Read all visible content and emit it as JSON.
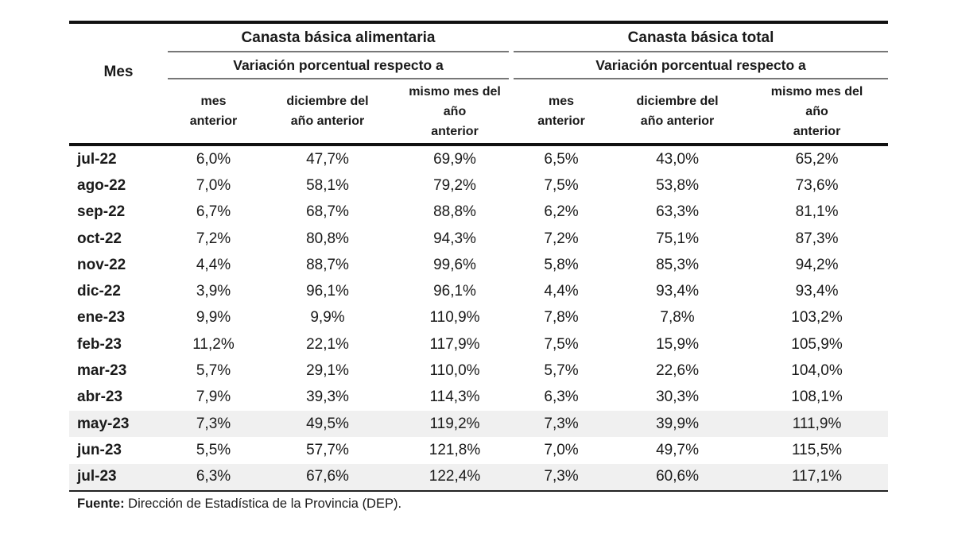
{
  "table": {
    "mes_header": "Mes",
    "groups": [
      {
        "title": "Canasta básica alimentaria",
        "subtitle": "Variación porcentual respecto a",
        "columns": [
          "mes anterior",
          "diciembre del año anterior",
          "mismo mes del año anterior"
        ]
      },
      {
        "title": "Canasta básica total",
        "subtitle": "Variación porcentual respecto a",
        "columns": [
          "mes anterior",
          "diciembre del año anterior",
          "mismo mes del año anterior"
        ]
      }
    ],
    "column_labels": {
      "mes_anterior": [
        "mes",
        "anterior"
      ],
      "diciembre": [
        "diciembre del",
        "año anterior"
      ],
      "mismo_mes": [
        "mismo mes del",
        "año",
        "anterior"
      ]
    },
    "rows": [
      {
        "mes": "jul-22",
        "cba": [
          "6,0%",
          "47,7%",
          "69,9%"
        ],
        "cbt": [
          "6,5%",
          "43,0%",
          "65,2%"
        ],
        "shaded": false
      },
      {
        "mes": "ago-22",
        "cba": [
          "7,0%",
          "58,1%",
          "79,2%"
        ],
        "cbt": [
          "7,5%",
          "53,8%",
          "73,6%"
        ],
        "shaded": false
      },
      {
        "mes": "sep-22",
        "cba": [
          "6,7%",
          "68,7%",
          "88,8%"
        ],
        "cbt": [
          "6,2%",
          "63,3%",
          "81,1%"
        ],
        "shaded": false
      },
      {
        "mes": "oct-22",
        "cba": [
          "7,2%",
          "80,8%",
          "94,3%"
        ],
        "cbt": [
          "7,2%",
          "75,1%",
          "87,3%"
        ],
        "shaded": false
      },
      {
        "mes": "nov-22",
        "cba": [
          "4,4%",
          "88,7%",
          "99,6%"
        ],
        "cbt": [
          "5,8%",
          "85,3%",
          "94,2%"
        ],
        "shaded": false
      },
      {
        "mes": "dic-22",
        "cba": [
          "3,9%",
          "96,1%",
          "96,1%"
        ],
        "cbt": [
          "4,4%",
          "93,4%",
          "93,4%"
        ],
        "shaded": false
      },
      {
        "mes": "ene-23",
        "cba": [
          "9,9%",
          "9,9%",
          "110,9%"
        ],
        "cbt": [
          "7,8%",
          "7,8%",
          "103,2%"
        ],
        "shaded": false
      },
      {
        "mes": "feb-23",
        "cba": [
          "11,2%",
          "22,1%",
          "117,9%"
        ],
        "cbt": [
          "7,5%",
          "15,9%",
          "105,9%"
        ],
        "shaded": false
      },
      {
        "mes": "mar-23",
        "cba": [
          "5,7%",
          "29,1%",
          "110,0%"
        ],
        "cbt": [
          "5,7%",
          "22,6%",
          "104,0%"
        ],
        "shaded": false
      },
      {
        "mes": "abr-23",
        "cba": [
          "7,9%",
          "39,3%",
          "114,3%"
        ],
        "cbt": [
          "6,3%",
          "30,3%",
          "108,1%"
        ],
        "shaded": false
      },
      {
        "mes": "may-23",
        "cba": [
          "7,3%",
          "49,5%",
          "119,2%"
        ],
        "cbt": [
          "7,3%",
          "39,9%",
          "111,9%"
        ],
        "shaded": true
      },
      {
        "mes": "jun-23",
        "cba": [
          "5,5%",
          "57,7%",
          "121,8%"
        ],
        "cbt": [
          "7,0%",
          "49,7%",
          "115,5%"
        ],
        "shaded": false
      },
      {
        "mes": "jul-23",
        "cba": [
          "6,3%",
          "67,6%",
          "122,4%"
        ],
        "cbt": [
          "7,3%",
          "60,6%",
          "117,1%"
        ],
        "shaded": true
      }
    ]
  },
  "source": {
    "label": "Fuente:",
    "text": " Dirección de Estadística de la Provincia (DEP)."
  },
  "colors": {
    "shaded_row": "#f0f0f0",
    "rule": "#111111",
    "text": "#1a1a1a"
  }
}
